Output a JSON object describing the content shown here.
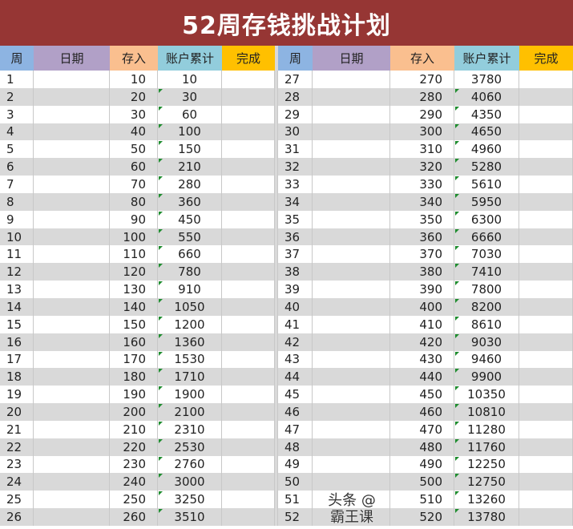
{
  "title": "52周存钱挑战计划",
  "headers": [
    "周",
    "日期",
    "存入",
    "账户累计",
    "完成"
  ],
  "colors": {
    "title": "#963634",
    "week": "#8db4e2",
    "date": "#b1a0c7",
    "deposit": "#fabf8f",
    "total": "#92cddc",
    "done": "#ffc000",
    "alt_row": "#d9d9d9"
  },
  "watermark": "头条 @霸王课",
  "left_rows": [
    {
      "week": "1",
      "date": "",
      "deposit": "10",
      "total": "10",
      "done": ""
    },
    {
      "week": "2",
      "date": "",
      "deposit": "20",
      "total": "30",
      "done": ""
    },
    {
      "week": "3",
      "date": "",
      "deposit": "30",
      "total": "60",
      "done": ""
    },
    {
      "week": "4",
      "date": "",
      "deposit": "40",
      "total": "100",
      "done": ""
    },
    {
      "week": "5",
      "date": "",
      "deposit": "50",
      "total": "150",
      "done": ""
    },
    {
      "week": "6",
      "date": "",
      "deposit": "60",
      "total": "210",
      "done": ""
    },
    {
      "week": "7",
      "date": "",
      "deposit": "70",
      "total": "280",
      "done": ""
    },
    {
      "week": "8",
      "date": "",
      "deposit": "80",
      "total": "360",
      "done": ""
    },
    {
      "week": "9",
      "date": "",
      "deposit": "90",
      "total": "450",
      "done": ""
    },
    {
      "week": "10",
      "date": "",
      "deposit": "100",
      "total": "550",
      "done": ""
    },
    {
      "week": "11",
      "date": "",
      "deposit": "110",
      "total": "660",
      "done": ""
    },
    {
      "week": "12",
      "date": "",
      "deposit": "120",
      "total": "780",
      "done": ""
    },
    {
      "week": "13",
      "date": "",
      "deposit": "130",
      "total": "910",
      "done": ""
    },
    {
      "week": "14",
      "date": "",
      "deposit": "140",
      "total": "1050",
      "done": ""
    },
    {
      "week": "15",
      "date": "",
      "deposit": "150",
      "total": "1200",
      "done": ""
    },
    {
      "week": "16",
      "date": "",
      "deposit": "160",
      "total": "1360",
      "done": ""
    },
    {
      "week": "17",
      "date": "",
      "deposit": "170",
      "total": "1530",
      "done": ""
    },
    {
      "week": "18",
      "date": "",
      "deposit": "180",
      "total": "1710",
      "done": ""
    },
    {
      "week": "19",
      "date": "",
      "deposit": "190",
      "total": "1900",
      "done": ""
    },
    {
      "week": "20",
      "date": "",
      "deposit": "200",
      "total": "2100",
      "done": ""
    },
    {
      "week": "21",
      "date": "",
      "deposit": "210",
      "total": "2310",
      "done": ""
    },
    {
      "week": "22",
      "date": "",
      "deposit": "220",
      "total": "2530",
      "done": ""
    },
    {
      "week": "23",
      "date": "",
      "deposit": "230",
      "total": "2760",
      "done": ""
    },
    {
      "week": "24",
      "date": "",
      "deposit": "240",
      "total": "3000",
      "done": ""
    },
    {
      "week": "25",
      "date": "",
      "deposit": "250",
      "total": "3250",
      "done": ""
    },
    {
      "week": "26",
      "date": "",
      "deposit": "260",
      "total": "3510",
      "done": ""
    }
  ],
  "right_rows": [
    {
      "week": "27",
      "date": "",
      "deposit": "270",
      "total": "3780",
      "done": ""
    },
    {
      "week": "28",
      "date": "",
      "deposit": "280",
      "total": "4060",
      "done": ""
    },
    {
      "week": "29",
      "date": "",
      "deposit": "290",
      "total": "4350",
      "done": ""
    },
    {
      "week": "30",
      "date": "",
      "deposit": "300",
      "total": "4650",
      "done": ""
    },
    {
      "week": "31",
      "date": "",
      "deposit": "310",
      "total": "4960",
      "done": ""
    },
    {
      "week": "32",
      "date": "",
      "deposit": "320",
      "total": "5280",
      "done": ""
    },
    {
      "week": "33",
      "date": "",
      "deposit": "330",
      "total": "5610",
      "done": ""
    },
    {
      "week": "34",
      "date": "",
      "deposit": "340",
      "total": "5950",
      "done": ""
    },
    {
      "week": "35",
      "date": "",
      "deposit": "350",
      "total": "6300",
      "done": ""
    },
    {
      "week": "36",
      "date": "",
      "deposit": "360",
      "total": "6660",
      "done": ""
    },
    {
      "week": "37",
      "date": "",
      "deposit": "370",
      "total": "7030",
      "done": ""
    },
    {
      "week": "38",
      "date": "",
      "deposit": "380",
      "total": "7410",
      "done": ""
    },
    {
      "week": "39",
      "date": "",
      "deposit": "390",
      "total": "7800",
      "done": ""
    },
    {
      "week": "40",
      "date": "",
      "deposit": "400",
      "total": "8200",
      "done": ""
    },
    {
      "week": "41",
      "date": "",
      "deposit": "410",
      "total": "8610",
      "done": ""
    },
    {
      "week": "42",
      "date": "",
      "deposit": "420",
      "total": "9030",
      "done": ""
    },
    {
      "week": "43",
      "date": "",
      "deposit": "430",
      "total": "9460",
      "done": ""
    },
    {
      "week": "44",
      "date": "",
      "deposit": "440",
      "total": "9900",
      "done": ""
    },
    {
      "week": "45",
      "date": "",
      "deposit": "450",
      "total": "10350",
      "done": ""
    },
    {
      "week": "46",
      "date": "",
      "deposit": "460",
      "total": "10810",
      "done": ""
    },
    {
      "week": "47",
      "date": "",
      "deposit": "470",
      "total": "11280",
      "done": ""
    },
    {
      "week": "48",
      "date": "",
      "deposit": "480",
      "total": "11760",
      "done": ""
    },
    {
      "week": "49",
      "date": "",
      "deposit": "490",
      "total": "12250",
      "done": ""
    },
    {
      "week": "50",
      "date": "",
      "deposit": "500",
      "total": "12750",
      "done": ""
    },
    {
      "week": "51",
      "date": "",
      "deposit": "510",
      "total": "13260",
      "done": ""
    },
    {
      "week": "52",
      "date": "",
      "deposit": "520",
      "total": "13780",
      "done": ""
    }
  ]
}
